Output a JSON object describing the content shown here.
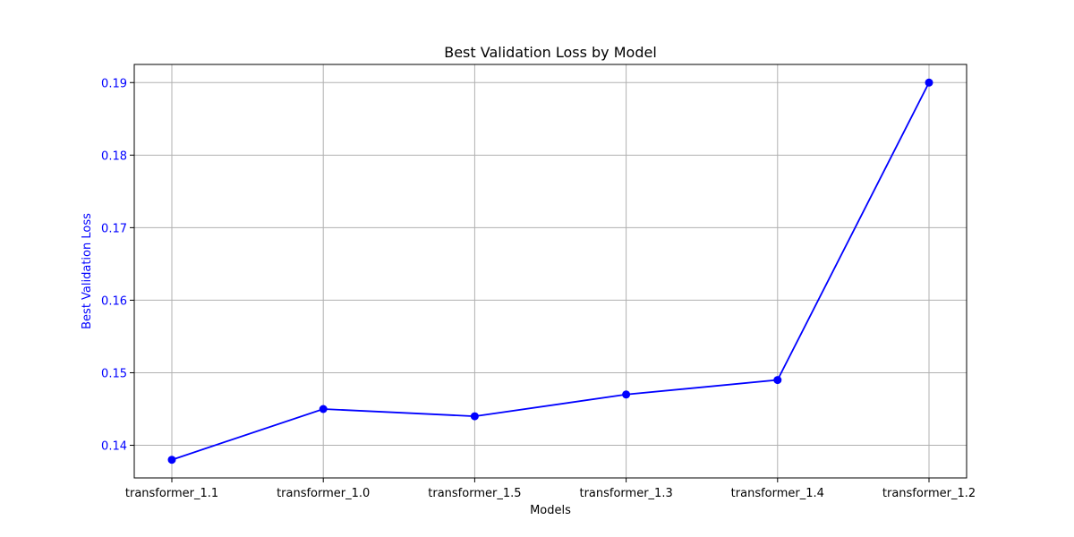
{
  "chart_data": {
    "type": "line",
    "title": "Best Validation Loss by Model",
    "xlabel": "Models",
    "ylabel": "Best Validation Loss",
    "categories": [
      "transformer_1.1",
      "transformer_1.0",
      "transformer_1.5",
      "transformer_1.3",
      "transformer_1.4",
      "transformer_1.2"
    ],
    "series": [
      {
        "values": [
          0.138,
          0.145,
          0.144,
          0.147,
          0.149,
          0.19
        ]
      }
    ],
    "yticks": [
      "0.14",
      "0.15",
      "0.16",
      "0.17",
      "0.18",
      "0.19"
    ],
    "ylim": [
      0.1355,
      0.1925
    ],
    "grid": true,
    "marker": "circle"
  },
  "colors": {
    "series": "#0000ff",
    "ylabel": "#0000ff",
    "yticks": "#0000ff",
    "xticks": "#000000",
    "grid": "#b0b0b0"
  }
}
